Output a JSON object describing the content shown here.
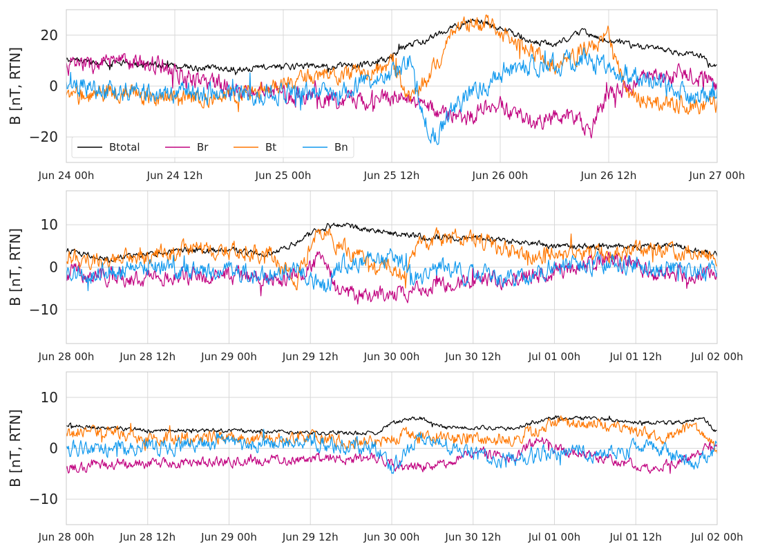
{
  "colors": {
    "Btotal": "#000000",
    "Br": "#c0007f",
    "Bt": "#ff7700",
    "Bn": "#1199ee",
    "grid": "#d8d8d8",
    "spine": "#c8c8c8"
  },
  "chart_data": [
    {
      "type": "line",
      "ylabel": "B [nT, RTN]",
      "ylim": [
        -30,
        30
      ],
      "yticks": [
        -20,
        0,
        20
      ],
      "ytick_labels": [
        "−20",
        "0",
        "20"
      ],
      "xlim": [
        "2023-06-24T00:00",
        "2023-06-27T00:00"
      ],
      "xticks": [
        "2023-06-24T00:00",
        "2023-06-24T12:00",
        "2023-06-25T00:00",
        "2023-06-25T12:00",
        "2023-06-26T00:00",
        "2023-06-26T12:00",
        "2023-06-27T00:00"
      ],
      "xtick_labels": [
        "Jun 24 00h",
        "Jun 24 12h",
        "Jun 25 00h",
        "Jun 25 12h",
        "Jun 26 00h",
        "Jun 26 12h",
        "Jun 27 00h"
      ],
      "grid": true,
      "legend": {
        "placement": "lower-left",
        "entries": [
          "Btotal",
          "Br",
          "Bt",
          "Bn"
        ]
      },
      "series": [
        {
          "name": "Btotal",
          "x_hours": [
            0,
            6,
            12,
            15,
            20,
            27,
            32,
            36,
            37,
            40,
            42,
            45,
            48,
            51,
            54,
            57,
            60,
            64,
            66,
            70,
            72
          ],
          "values": [
            10,
            9,
            8,
            7,
            7,
            8,
            8,
            11,
            15,
            18,
            22,
            26,
            23,
            18,
            16,
            21,
            18,
            15,
            14,
            12,
            7
          ],
          "noise": 1.2
        },
        {
          "name": "Br",
          "x_hours": [
            0,
            4,
            10,
            14,
            20,
            24,
            30,
            34,
            36,
            38,
            40,
            44,
            48,
            52,
            56,
            58,
            60,
            64,
            68,
            72
          ],
          "values": [
            8,
            9,
            9,
            3,
            -2,
            -3,
            -6,
            -5,
            -6,
            -4,
            -9,
            -12,
            -8,
            -14,
            -11,
            -17,
            -3,
            3,
            5,
            1
          ],
          "noise": 3.5
        },
        {
          "name": "Bt",
          "x_hours": [
            0,
            6,
            12,
            18,
            24,
            28,
            32,
            36,
            38,
            40,
            43,
            45,
            47,
            50,
            54,
            58,
            60,
            62,
            66,
            70,
            72
          ],
          "values": [
            -5,
            -2,
            -5,
            -4,
            0,
            5,
            5,
            8,
            -5,
            3,
            20,
            25,
            24,
            17,
            8,
            15,
            20,
            -3,
            -6,
            -8,
            -7
          ],
          "noise": 3.5
        },
        {
          "name": "Bn",
          "x_hours": [
            0,
            6,
            12,
            18,
            24,
            30,
            34,
            36,
            38,
            40,
            41,
            43,
            46,
            48,
            50,
            54,
            58,
            62,
            66,
            70,
            72
          ],
          "values": [
            0,
            -2,
            -2,
            -3,
            -3,
            -3,
            3,
            5,
            10,
            -16,
            -20,
            -8,
            0,
            5,
            8,
            9,
            10,
            5,
            0,
            -4,
            -2
          ],
          "noise": 4
        }
      ]
    },
    {
      "type": "line",
      "ylabel": "B [nT, RTN]",
      "ylim": [
        -18,
        18
      ],
      "yticks": [
        -10,
        0,
        10
      ],
      "ytick_labels": [
        "−10",
        "0",
        "10"
      ],
      "xlim": [
        "2023-06-28T00:00",
        "2023-07-02T00:00"
      ],
      "xticks": [
        "2023-06-28T00:00",
        "2023-06-28T12:00",
        "2023-06-29T00:00",
        "2023-06-29T12:00",
        "2023-06-30T00:00",
        "2023-06-30T12:00",
        "2023-07-01T00:00",
        "2023-07-01T12:00",
        "2023-07-02T00:00"
      ],
      "xtick_labels": [
        "Jun 28 00h",
        "Jun 28 12h",
        "Jun 29 00h",
        "Jun 29 12h",
        "Jun 30 00h",
        "Jun 30 12h",
        "Jul 01 00h",
        "Jul 01 12h",
        "Jul 02 00h"
      ],
      "grid": true,
      "series": [
        {
          "name": "Btotal",
          "x_hours": [
            0,
            6,
            12,
            18,
            24,
            30,
            33,
            36,
            40,
            44,
            48,
            54,
            60,
            66,
            72,
            78,
            84,
            90,
            96
          ],
          "values": [
            4,
            2,
            3,
            4,
            4,
            3,
            5,
            8,
            10,
            9,
            8,
            7,
            7,
            6,
            5,
            5,
            5,
            5,
            3
          ],
          "noise": 0.7
        },
        {
          "name": "Br",
          "x_hours": [
            0,
            6,
            12,
            18,
            24,
            30,
            34,
            36,
            38,
            40,
            44,
            48,
            52,
            56,
            60,
            66,
            72,
            80,
            88,
            96
          ],
          "values": [
            -1,
            -2,
            -3,
            -2,
            -2,
            -3,
            -2,
            0,
            3,
            -6,
            -7,
            -6,
            -5,
            -4,
            -3,
            -3,
            -1,
            2,
            -2,
            -2
          ],
          "noise": 2
        },
        {
          "name": "Bt",
          "x_hours": [
            0,
            6,
            12,
            18,
            24,
            30,
            34,
            36,
            38,
            40,
            44,
            48,
            50,
            52,
            56,
            60,
            66,
            72,
            78,
            84,
            90,
            96
          ],
          "values": [
            2,
            1,
            3,
            4,
            4,
            3,
            -3,
            5,
            9,
            5,
            2,
            0,
            -2,
            6,
            7,
            6,
            4,
            3,
            3,
            4,
            4,
            3
          ],
          "noise": 2
        },
        {
          "name": "Bn",
          "x_hours": [
            0,
            6,
            12,
            18,
            24,
            30,
            34,
            36,
            38,
            40,
            44,
            48,
            52,
            56,
            60,
            66,
            72,
            80,
            88,
            96
          ],
          "values": [
            -2,
            -1,
            0,
            -1,
            -1,
            -2,
            0,
            -3,
            -5,
            0,
            2,
            2,
            -2,
            0,
            -2,
            -3,
            0,
            1,
            0,
            -1
          ],
          "noise": 2.2
        }
      ]
    },
    {
      "type": "line",
      "ylabel": "B [nT, RTN]",
      "ylim": [
        -15,
        15
      ],
      "yticks": [
        -10,
        0,
        10
      ],
      "ytick_labels": [
        "−10",
        "0",
        "10"
      ],
      "xlim": [
        "2023-06-28T00:00",
        "2023-07-02T00:00"
      ],
      "xticks": [
        "2023-06-28T00:00",
        "2023-06-28T12:00",
        "2023-06-29T00:00",
        "2023-06-29T12:00",
        "2023-06-30T00:00",
        "2023-06-30T12:00",
        "2023-07-01T00:00",
        "2023-07-01T12:00",
        "2023-07-02T00:00"
      ],
      "xtick_labels": [
        "Jun 28 00h",
        "Jun 28 12h",
        "Jun 29 00h",
        "Jun 29 12h",
        "Jun 30 00h",
        "Jun 30 12h",
        "Jul 01 00h",
        "Jul 01 12h",
        "Jul 02 00h"
      ],
      "grid": true,
      "series": [
        {
          "name": "Btotal",
          "x_hours": [
            0,
            12,
            24,
            36,
            46,
            48,
            52,
            56,
            60,
            66,
            72,
            78,
            84,
            90,
            94,
            96
          ],
          "values": [
            4.5,
            3.5,
            3.5,
            3,
            3,
            5,
            6,
            4,
            4,
            4,
            6,
            6,
            5,
            5,
            6,
            3
          ],
          "noise": 0.4
        },
        {
          "name": "Br",
          "x_hours": [
            0,
            6,
            12,
            24,
            36,
            46,
            50,
            56,
            60,
            66,
            70,
            72,
            80,
            86,
            90,
            94,
            96
          ],
          "values": [
            -4,
            -3,
            -3,
            -2.5,
            -2,
            -2,
            -4,
            -3,
            -1,
            -2,
            2,
            0,
            -2,
            -4,
            -3,
            0,
            1
          ],
          "noise": 1
        },
        {
          "name": "Bt",
          "x_hours": [
            0,
            6,
            12,
            24,
            36,
            46,
            50,
            56,
            60,
            66,
            72,
            78,
            84,
            88,
            92,
            96
          ],
          "values": [
            3,
            3,
            2,
            2,
            2,
            1,
            3,
            2,
            2,
            2,
            5,
            5,
            3,
            2,
            4,
            0
          ],
          "noise": 1.2
        },
        {
          "name": "Bn",
          "x_hours": [
            0,
            6,
            12,
            24,
            36,
            46,
            48,
            52,
            58,
            62,
            66,
            72,
            78,
            84,
            88,
            92,
            96
          ],
          "values": [
            0,
            0,
            0,
            1,
            1,
            0,
            -4,
            2,
            0,
            -2,
            -2,
            -1,
            -1,
            0,
            0,
            -3,
            0
          ],
          "noise": 1.5
        }
      ]
    }
  ]
}
